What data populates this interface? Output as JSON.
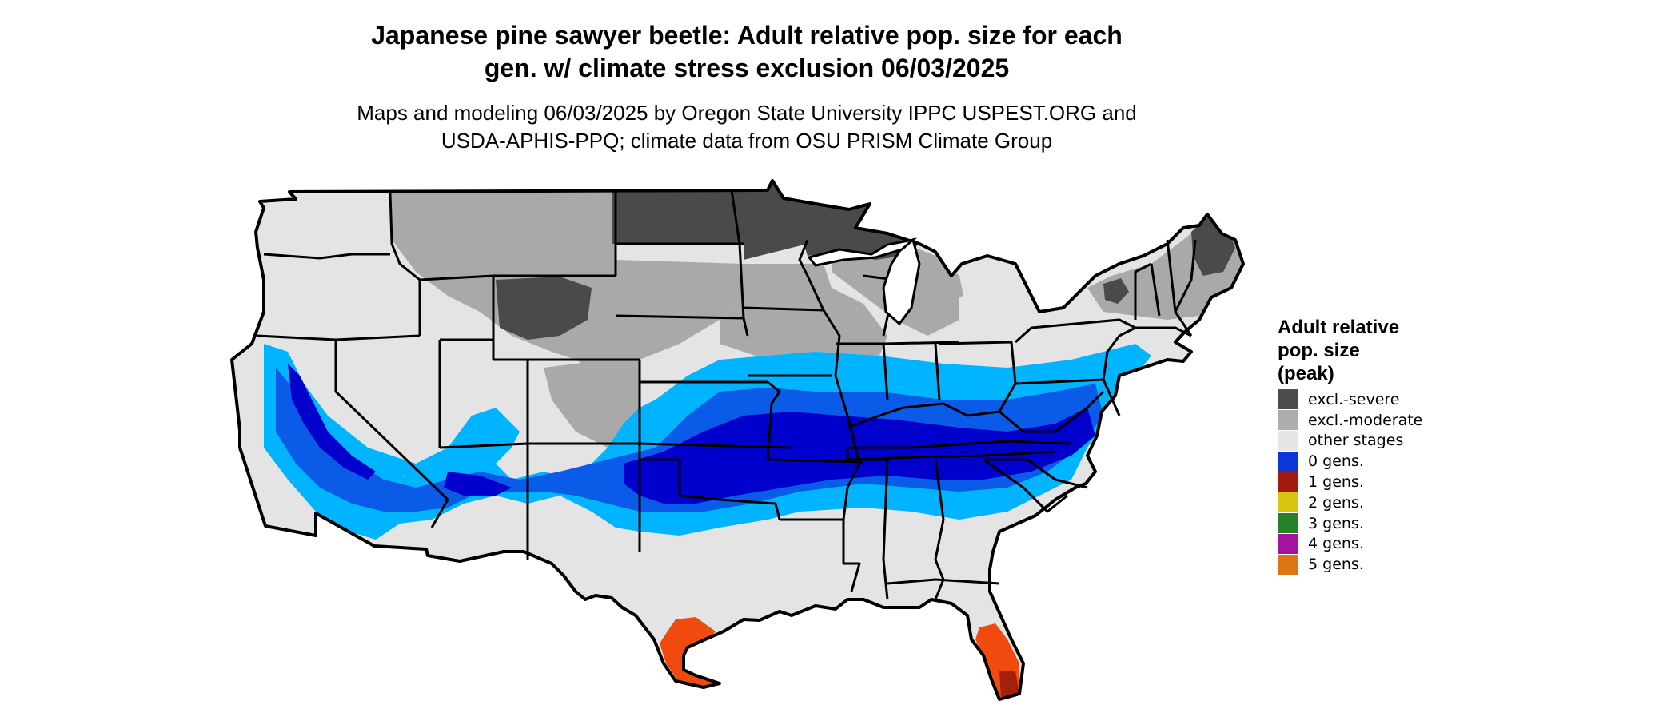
{
  "title": "Japanese pine sawyer beetle: Adult relative pop. size for each\ngen. w/ climate stress exclusion 06/03/2025",
  "subtitle": "Maps and modeling 06/03/2025 by Oregon State University IPPC USPEST.ORG and\nUSDA-APHIS-PPQ; climate data from OSU PRISM Climate Group",
  "legend": {
    "title": "Adult relative\npop. size\n(peak)",
    "items": [
      {
        "label": "excl.-severe",
        "color": "#4d4d4d"
      },
      {
        "label": "excl.-moderate",
        "color": "#adadad"
      },
      {
        "label": "other stages",
        "color": "#e6e6e6"
      },
      {
        "label": "0 gens.",
        "color": "#0a37d6"
      },
      {
        "label": "1 gens.",
        "color": "#a31a12"
      },
      {
        "label": "2 gens.",
        "color": "#d9c40f"
      },
      {
        "label": "3 gens.",
        "color": "#27822a"
      },
      {
        "label": "4 gens.",
        "color": "#a3139e"
      },
      {
        "label": "5 gens.",
        "color": "#de7514"
      }
    ]
  },
  "map_colors": {
    "other_stages": "#e4e4e4",
    "excl_moderate": "#a9a9a9",
    "excl_severe": "#4a4a4a",
    "zero_gens_light": "#00b4ff",
    "zero_gens_mid": "#0a5ce8",
    "zero_gens_dark": "#0000cd",
    "gens_warm": "#f04a0f",
    "gens_warm_dark": "#a3200f",
    "border": "#000000"
  }
}
